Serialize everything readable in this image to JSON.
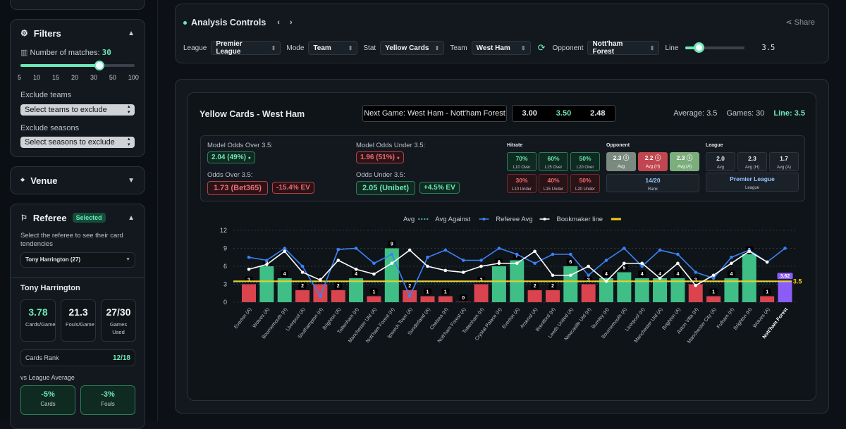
{
  "sidebar": {
    "filters": {
      "title": "Filters",
      "matches_label": "Number of matches:",
      "matches_value": "30",
      "ticks": [
        "5",
        "10",
        "15",
        "20",
        "30",
        "50",
        "100"
      ],
      "exclude_teams_label": "Exclude teams",
      "exclude_teams_placeholder": "Select teams to exclude",
      "exclude_seasons_label": "Exclude seasons",
      "exclude_seasons_placeholder": "Select seasons to exclude",
      "slider_fraction": 0.69
    },
    "venue": {
      "title": "Venue"
    },
    "referee": {
      "title": "Referee",
      "badge": "Selected",
      "description": "Select the referee to see their card tendencies",
      "selected": "Tony Harrington (27)",
      "name": "Tony Harrington",
      "stats": [
        {
          "value": "3.78",
          "label": "Cards/Game"
        },
        {
          "value": "21.3",
          "label": "Fouls/Game"
        },
        {
          "value": "27/30",
          "label": "Games Used"
        }
      ],
      "rank_label": "Cards Rank",
      "rank_value": "12/18",
      "vs_label": "vs League Average",
      "vs": [
        {
          "value": "-5%",
          "label": "Cards"
        },
        {
          "value": "-3%",
          "label": "Fouls"
        }
      ]
    }
  },
  "controls": {
    "title": "Analysis Controls",
    "share": "Share",
    "league_label": "League",
    "league": "Premier League",
    "mode_label": "Mode",
    "mode": "Team",
    "stat_label": "Stat",
    "stat": "Yellow Cards",
    "team_label": "Team",
    "team": "West Ham",
    "opponent_label": "Opponent",
    "opponent": "Nott'ham Forest",
    "line_label": "Line",
    "line_value": "3.5",
    "line_fraction": 0.22
  },
  "analysis": {
    "title": "Yellow Cards - West Ham",
    "next_game": "Next Game: West Ham - Nott'ham Forest",
    "odds": [
      {
        "value": "3.00",
        "color": "#e6e8eb"
      },
      {
        "value": "3.50",
        "color": "#6ee7b7"
      },
      {
        "value": "2.48",
        "color": "#e6e8eb"
      }
    ],
    "average": "Average: 3.5",
    "games": "Games: 30",
    "line": "Line: 3.5",
    "model_over_label": "Model Odds Over 3.5:",
    "model_over": "2.04 (49%)",
    "model_under_label": "Model Odds Under 3.5:",
    "model_under": "1.96 (51%)",
    "odds_over_label": "Odds Over 3.5:",
    "odds_over": "1.73 (Bet365)",
    "odds_over_ev": "-15.4% EV",
    "odds_under_label": "Odds Under 3.5:",
    "odds_under": "2.05 (Unibet)",
    "odds_under_ev": "+4.5% EV",
    "hitrate": {
      "title": "Hitrate",
      "over": [
        {
          "v": "70%",
          "l": "L10 Over"
        },
        {
          "v": "60%",
          "l": "L15 Over"
        },
        {
          "v": "50%",
          "l": "L20 Over"
        }
      ],
      "under": [
        {
          "v": "30%",
          "l": "L10 Under"
        },
        {
          "v": "40%",
          "l": "L15 Under"
        },
        {
          "v": "50%",
          "l": "L20 Under"
        }
      ]
    },
    "opponent": {
      "title": "Opponent",
      "stats": [
        {
          "v": "2.3",
          "l": "Avg"
        },
        {
          "v": "2.2",
          "l": "Avg (H)"
        },
        {
          "v": "2.3",
          "l": "Avg (A)"
        }
      ],
      "rank": "14/20",
      "rank_label": "Rank"
    },
    "league": {
      "title": "League",
      "stats": [
        {
          "v": "2.0",
          "l": "Avg"
        },
        {
          "v": "2.3",
          "l": "Avg (H)"
        },
        {
          "v": "1.7",
          "l": "Avg (A)"
        }
      ],
      "name": "Premier League",
      "name_label": "League"
    }
  },
  "chart_data": {
    "type": "bar",
    "ylim": [
      0,
      12
    ],
    "yticks": [
      "0",
      "3",
      "6",
      "9",
      "12"
    ],
    "line": 3.5,
    "next_value": "3.62",
    "line_label": "3.5",
    "legend": [
      {
        "name": "Avg",
        "color": "#5eead4"
      },
      {
        "name": "Avg Against",
        "color": "#3b82f6"
      },
      {
        "name": "Referee Avg",
        "color": "#ffffff"
      },
      {
        "name": "Bookmaker line",
        "color": "#facc15"
      }
    ],
    "categories": [
      "Everton (A)",
      "Wolves (A)",
      "Bournemouth (H)",
      "Liverpool (A)",
      "Southampton (H)",
      "Brighton (A)",
      "Tottenham (H)",
      "Manchester Utd (A)",
      "Nott'ham Forest (H)",
      "Ipswich Town (A)",
      "Sunderland (A)",
      "Chelsea (H)",
      "Nott'ham Forest (A)",
      "Tottenham (H)",
      "Crystal Palace (H)",
      "Everton (A)",
      "Arsenal (A)",
      "Brentford (H)",
      "Leeds United (A)",
      "Newcastle Utd (H)",
      "Burnley (H)",
      "Bournemouth (A)",
      "Liverpool (H)",
      "Manchester Utd (A)",
      "Brighton (A)",
      "Aston Villa (H)",
      "Manchester City (A)",
      "Fulham (H)",
      "Brighton (H)",
      "Wolves (A)",
      "Nott'ham Forest"
    ],
    "values": [
      3,
      6,
      4,
      2,
      3,
      2,
      4,
      1,
      9,
      2,
      1,
      1,
      0,
      3,
      6,
      7,
      2,
      2,
      6,
      3,
      4,
      5,
      4,
      4,
      4,
      3,
      1,
      4,
      8,
      1,
      3.62
    ],
    "avg_against": [
      7.5,
      7,
      9,
      6,
      1,
      8.8,
      9,
      6.5,
      8,
      1,
      7.5,
      8.7,
      7,
      7,
      9,
      8,
      6.5,
      8,
      8,
      4.5,
      7,
      9,
      6,
      8.7,
      8,
      5,
      4,
      7.5,
      8.7,
      6.7,
      9
    ],
    "referee_avg": [
      5.5,
      6.3,
      8.5,
      5,
      3.7,
      7,
      5.5,
      4.7,
      6.5,
      8.7,
      6,
      5.3,
      5,
      6,
      6.5,
      6.5,
      8.5,
      4.5,
      4.5,
      6,
      3.5,
      6.5,
      6.5,
      4,
      6.5,
      2.8,
      4.5,
      6.5,
      8.5,
      6.7
    ]
  }
}
